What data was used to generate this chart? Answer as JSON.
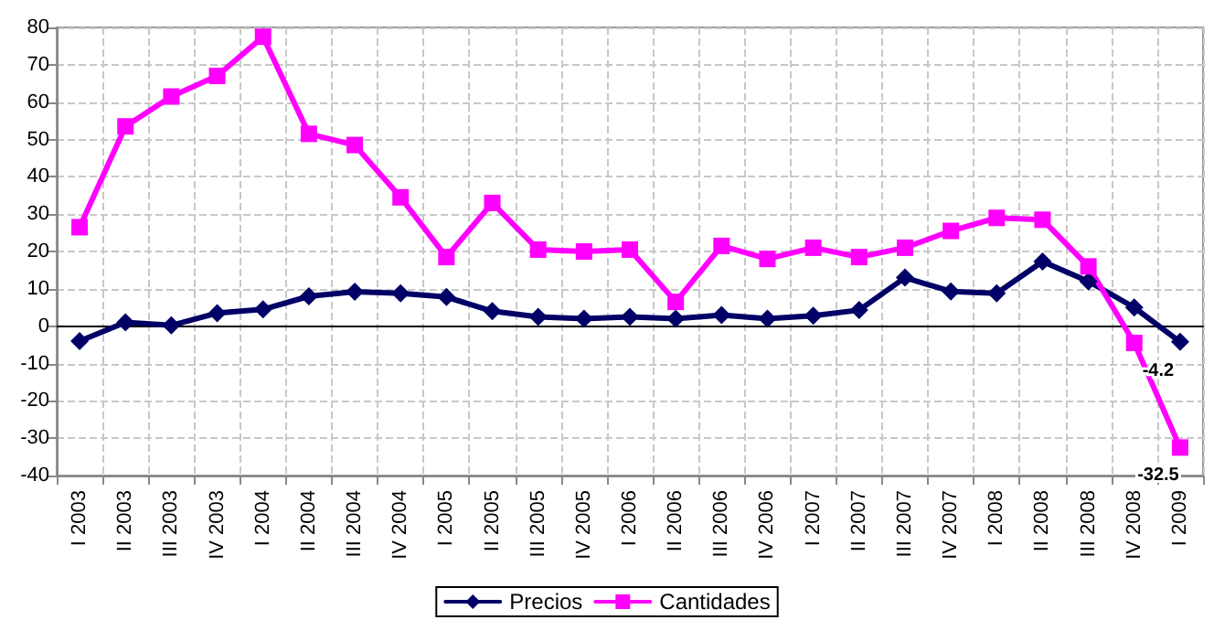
{
  "chart_data": {
    "type": "line",
    "categories": [
      "I 2003",
      "II 2003",
      "III 2003",
      "IV 2003",
      "I 2004",
      "II 2004",
      "III 2004",
      "IV 2004",
      "I 2005",
      "II 2005",
      "III 2005",
      "IV 2005",
      "I 2006",
      "II 2006",
      "III 2006",
      "IV 2006",
      "I 2007",
      "II 2007",
      "III 2007",
      "IV 2007",
      "I 2008",
      "II 2008",
      "III 2008",
      "IV 2008",
      "I 2009"
    ],
    "series": [
      {
        "name": "Precios",
        "color": "#000066",
        "marker": "diamond",
        "values": [
          -4,
          1,
          0.2,
          3.5,
          4.5,
          8,
          9.2,
          8.8,
          7.8,
          4,
          2.5,
          2,
          2.5,
          2,
          3,
          2,
          2.8,
          4.3,
          13,
          9.3,
          8.8,
          17.3,
          12,
          5,
          -4.2
        ],
        "value_labels": [
          null,
          null,
          null,
          null,
          null,
          null,
          null,
          null,
          null,
          null,
          null,
          null,
          null,
          null,
          null,
          null,
          null,
          null,
          null,
          null,
          null,
          null,
          null,
          null,
          "-4.2"
        ]
      },
      {
        "name": "Cantidades",
        "color": "#ff00ff",
        "marker": "square",
        "values": [
          26.5,
          53.5,
          61.5,
          67,
          77.5,
          51.5,
          48.5,
          34.5,
          18.5,
          33,
          20.5,
          20,
          20.5,
          6.5,
          21.5,
          18,
          21,
          18.5,
          21,
          25.5,
          29,
          28.5,
          16,
          -4.5,
          -32.5
        ],
        "value_labels": [
          null,
          null,
          null,
          null,
          null,
          null,
          null,
          null,
          null,
          null,
          null,
          null,
          null,
          null,
          null,
          null,
          null,
          null,
          null,
          null,
          null,
          null,
          null,
          null,
          "-32.5"
        ]
      }
    ],
    "ylim": [
      -40,
      80
    ],
    "yticks": [
      -40,
      -30,
      -20,
      -10,
      0,
      10,
      20,
      30,
      40,
      50,
      60,
      70,
      80
    ],
    "grid": true,
    "legend": "bottom",
    "line_style": "solid"
  }
}
